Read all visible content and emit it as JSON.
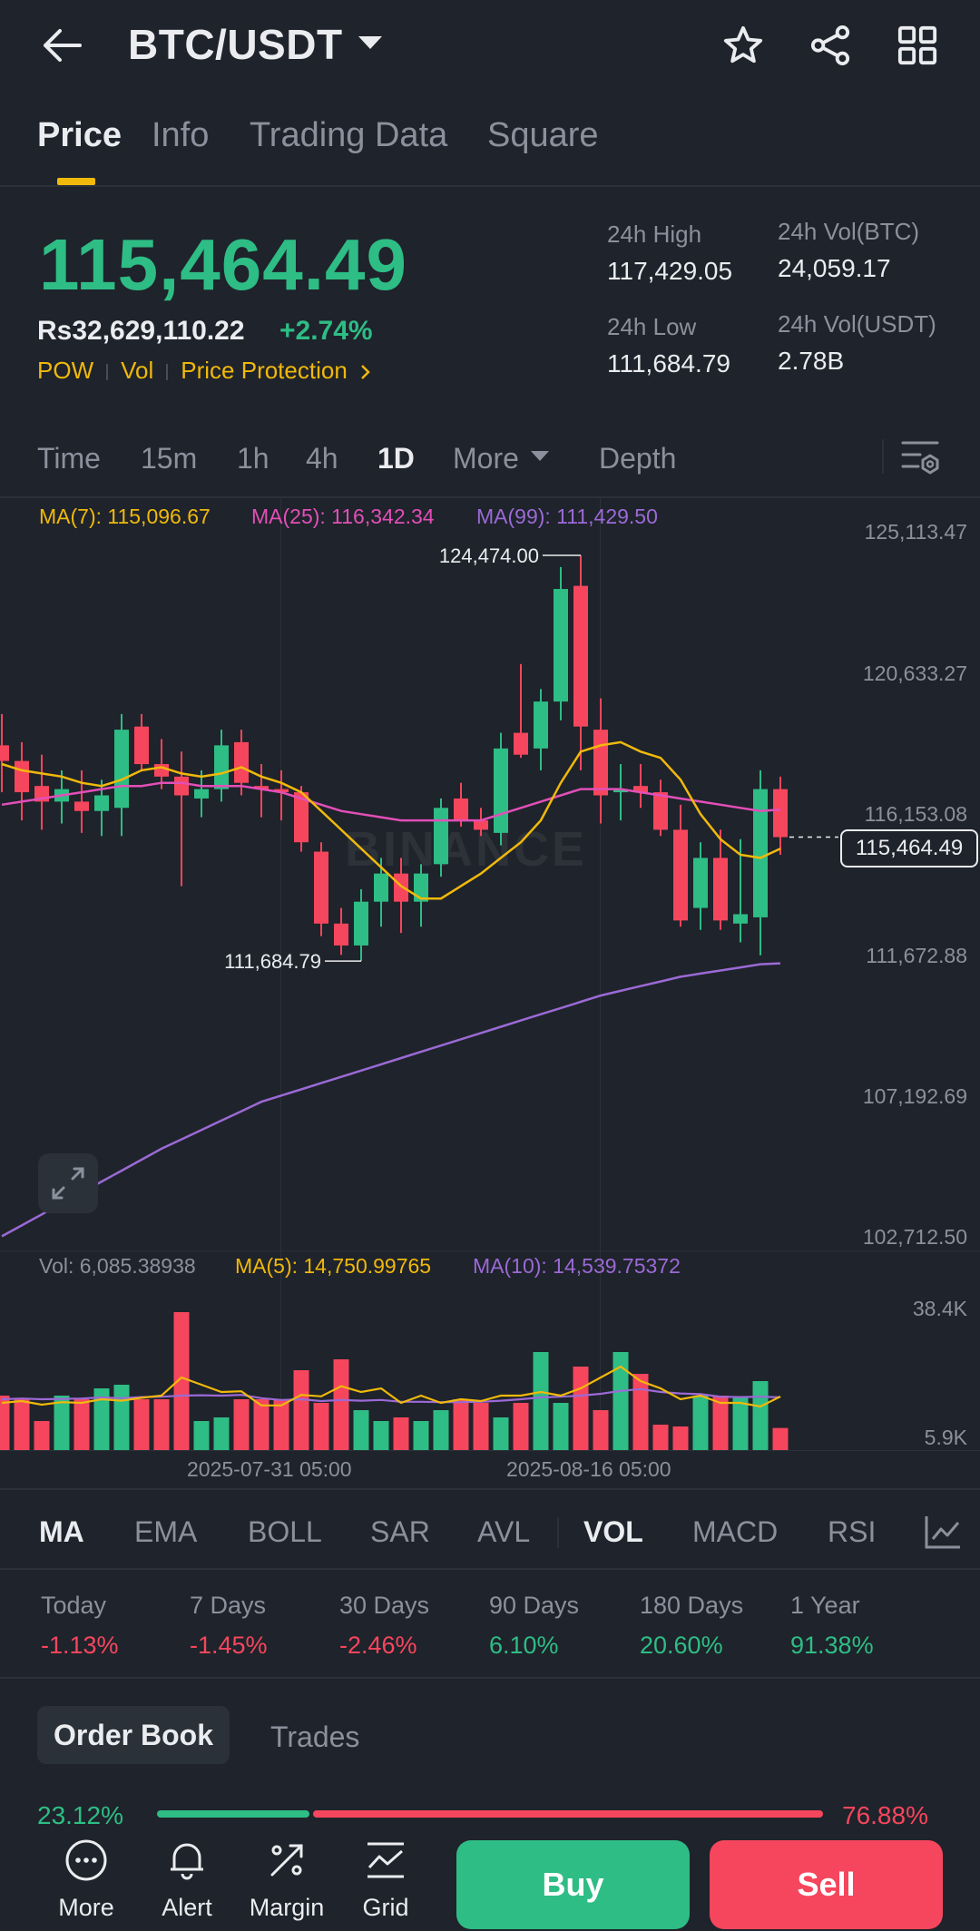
{
  "header": {
    "pair": "BTC/USDT",
    "icons": [
      "back-arrow-icon",
      "chevron-down-icon",
      "star-icon",
      "share-icon",
      "grid-icon"
    ]
  },
  "tabs": [
    "Price",
    "Info",
    "Trading Data",
    "Square"
  ],
  "price": {
    "last": "115,464.49",
    "fiat": "Rs32,629,110.22",
    "change": "+2.74%",
    "tags": [
      "POW",
      "Vol",
      "Price Protection"
    ],
    "high_label": "24h High",
    "high": "117,429.05",
    "low_label": "24h Low",
    "low": "111,684.79",
    "vol_btc_label": "24h Vol(BTC)",
    "vol_btc": "24,059.17",
    "vol_usdt_label": "24h Vol(USDT)",
    "vol_usdt": "2.78B"
  },
  "timeframes": {
    "time": "Time",
    "m15": "15m",
    "h1": "1h",
    "h4": "4h",
    "d1": "1D",
    "more": "More",
    "depth": "Depth"
  },
  "chart_data": [
    {
      "type": "candlestick",
      "legend": {
        "ma7": "MA(7): 115,096.67",
        "ma25": "MA(25): 116,342.34",
        "ma99": "MA(99): 111,429.50"
      },
      "y_ticks": [
        "125,113.47",
        "120,633.27",
        "116,153.08",
        "111,672.88",
        "107,192.69",
        "102,712.50"
      ],
      "ylim": [
        102712.5,
        125113.47
      ],
      "current_price_label": "115,464.49",
      "high_marker": "124,474.00",
      "low_marker": "111,684.79",
      "watermark": "BINANCE",
      "candles": [
        [
          118400,
          119400,
          116900,
          117900
        ],
        [
          117900,
          118500,
          116000,
          116900
        ],
        [
          117100,
          118100,
          115700,
          116600
        ],
        [
          116600,
          117600,
          115900,
          117000
        ],
        [
          116600,
          117600,
          115600,
          116300
        ],
        [
          116300,
          117300,
          115500,
          116800
        ],
        [
          116400,
          119400,
          115500,
          118900
        ],
        [
          119000,
          119400,
          117600,
          117800
        ],
        [
          117800,
          118600,
          117000,
          117400
        ],
        [
          117400,
          118200,
          113900,
          116800
        ],
        [
          116700,
          117600,
          116100,
          117000
        ],
        [
          117000,
          118900,
          116600,
          118400
        ],
        [
          118500,
          118900,
          116800,
          117200
        ],
        [
          117100,
          117800,
          116100,
          117000
        ],
        [
          117000,
          117600,
          116000,
          116900
        ],
        [
          116900,
          117100,
          115000,
          115300
        ],
        [
          115000,
          115300,
          112300,
          112700
        ],
        [
          112700,
          113200,
          111700,
          112000
        ],
        [
          112000,
          113800,
          111500,
          113400
        ],
        [
          113400,
          114800,
          112600,
          114300
        ],
        [
          114300,
          114800,
          112400,
          113400
        ],
        [
          113400,
          114600,
          112600,
          114300
        ],
        [
          114600,
          116700,
          114200,
          116400
        ],
        [
          116700,
          117200,
          115800,
          116000
        ],
        [
          116000,
          116400,
          115500,
          115700
        ],
        [
          115600,
          118800,
          115200,
          118300
        ],
        [
          118800,
          121000,
          118000,
          118100
        ],
        [
          118300,
          120200,
          117600,
          119800
        ],
        [
          119800,
          124100,
          119200,
          123400
        ],
        [
          123500,
          124474,
          117600,
          119000
        ],
        [
          118900,
          119900,
          115900,
          116800
        ],
        [
          116900,
          117800,
          116000,
          117000
        ],
        [
          117100,
          117800,
          116400,
          116900
        ],
        [
          116900,
          117300,
          115500,
          115700
        ],
        [
          115700,
          116500,
          112600,
          112800
        ],
        [
          113200,
          115300,
          112500,
          114800
        ],
        [
          114800,
          115700,
          112500,
          112800
        ],
        [
          112700,
          115400,
          112100,
          113000
        ],
        [
          112900,
          117600,
          111684.79,
          117000
        ],
        [
          117000,
          117400,
          114900,
          115464.49
        ]
      ],
      "ma7": [
        117800,
        117600,
        117500,
        117400,
        117200,
        117100,
        117300,
        117600,
        117700,
        117500,
        117400,
        117500,
        117700,
        117400,
        117200,
        116900,
        116300,
        115700,
        115100,
        114500,
        113900,
        113500,
        113500,
        113900,
        114300,
        114800,
        115300,
        116000,
        117200,
        118200,
        118400,
        118500,
        118200,
        118000,
        117300,
        116200,
        115400,
        114900,
        114800,
        115096.67
      ],
      "ma25": [
        116500,
        116600,
        116700,
        116800,
        116900,
        117000,
        117100,
        117100,
        117200,
        117200,
        117100,
        117100,
        117100,
        117000,
        116900,
        116700,
        116500,
        116300,
        116200,
        116100,
        116000,
        116000,
        116000,
        116000,
        116000,
        116200,
        116400,
        116600,
        116800,
        117000,
        117000,
        117000,
        116900,
        116800,
        116700,
        116600,
        116500,
        116400,
        116300,
        116342.34
      ],
      "ma99": [
        102700,
        103050,
        103400,
        103750,
        104100,
        104450,
        104800,
        105150,
        105500,
        105800,
        106100,
        106400,
        106700,
        107000,
        107200,
        107400,
        107600,
        107800,
        108000,
        108200,
        108400,
        108600,
        108800,
        109000,
        109200,
        109400,
        109600,
        109800,
        110000,
        110200,
        110400,
        110550,
        110700,
        110850,
        111000,
        111100,
        111200,
        111300,
        111400,
        111429.5
      ],
      "colors": {
        "up": "#2ebd85",
        "down": "#f6465d",
        "ma7": "#f0b90b",
        "ma25": "#e24fb8",
        "ma99": "#9b6ad6"
      }
    },
    {
      "type": "bar",
      "legend": {
        "vol": "Vol: 6,085.38938",
        "ma5": "MA(5): 14,750.99765",
        "ma10": "MA(10): 14,539.75372"
      },
      "y_ticks": [
        "38.4K",
        "5.9K"
      ],
      "x_ticks": [
        "2025-07-31 05:00",
        "2025-08-16 05:00"
      ],
      "volumes": [
        15000,
        14000,
        8000,
        15000,
        14000,
        17000,
        18000,
        14000,
        14000,
        38000,
        8000,
        9000,
        14000,
        14000,
        14000,
        22000,
        13000,
        25000,
        11000,
        8000,
        9000,
        8000,
        11000,
        14000,
        13000,
        9000,
        13000,
        27000,
        13000,
        23000,
        11000,
        27000,
        21000,
        7000,
        6500,
        15000,
        15000,
        14500,
        19000,
        6085.39
      ],
      "ma5": [
        13000,
        13500,
        12500,
        13200,
        13000,
        14000,
        13600,
        14400,
        15000,
        20000,
        18000,
        16000,
        16200,
        12300,
        12300,
        15200,
        14800,
        17600,
        16000,
        17000,
        13000,
        15000,
        13000,
        14000,
        13500,
        15000,
        15000,
        16000,
        15000,
        17000,
        20000,
        23000,
        19000,
        17000,
        14000,
        15000,
        13000,
        13000,
        12000,
        14750.99765
      ],
      "ma10": [
        14000,
        14200,
        14000,
        14100,
        14200,
        14500,
        14300,
        14600,
        14700,
        15000,
        15100,
        15000,
        15200,
        14300,
        13800,
        14000,
        13500,
        13800,
        13600,
        13800,
        13300,
        13300,
        13200,
        13200,
        13300,
        13600,
        14000,
        14500,
        14700,
        15000,
        15500,
        16300,
        16800,
        16000,
        15600,
        15400,
        14700,
        14600,
        14700,
        14539.75372
      ],
      "colors": {
        "ma5": "#f0b90b",
        "ma10": "#9b6ad6"
      }
    }
  ],
  "indicators": [
    "MA",
    "EMA",
    "BOLL",
    "SAR",
    "AVL",
    "VOL",
    "MACD",
    "RSI"
  ],
  "performance": [
    {
      "label": "Today",
      "value": "-1.13%"
    },
    {
      "label": "7 Days",
      "value": "-1.45%"
    },
    {
      "label": "30 Days",
      "value": "-2.46%"
    },
    {
      "label": "90 Days",
      "value": "6.10%"
    },
    {
      "label": "180 Days",
      "value": "20.60%"
    },
    {
      "label": "1 Year",
      "value": "91.38%"
    }
  ],
  "orderbook": {
    "tab_active": "Order Book",
    "tab_other": "Trades",
    "buy_pct": "23.12%",
    "sell_pct": "76.88%"
  },
  "bottom_nav": {
    "more": "More",
    "alert": "Alert",
    "margin": "Margin",
    "grid": "Grid",
    "buy": "Buy",
    "sell": "Sell"
  }
}
